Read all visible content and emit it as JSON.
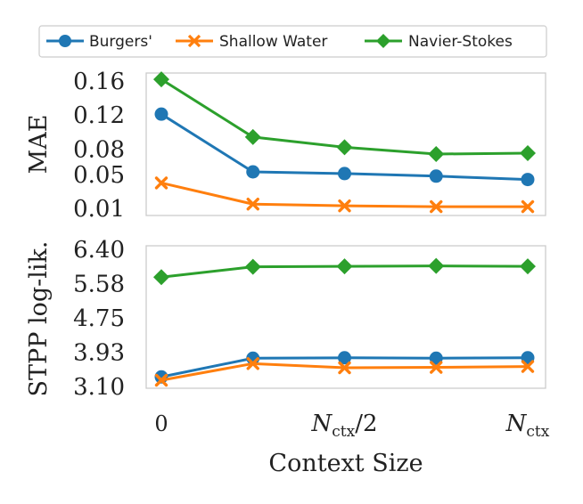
{
  "chart_data": {
    "type": "line",
    "x": [
      0,
      1,
      2,
      3,
      4
    ],
    "x_tick_labels": [
      {
        "x": 0,
        "label": "0"
      },
      {
        "x": 2,
        "label": "N_ctx/2",
        "base": "N",
        "sub": "ctx",
        "suffix": "/2"
      },
      {
        "x": 4,
        "label": "N_ctx",
        "base": "N",
        "sub": "ctx",
        "suffix": ""
      }
    ],
    "xlabel": "Context Size",
    "legend": {
      "placement": "top-center",
      "entries": [
        "Burgers'",
        "Shallow Water",
        "Navier-Stokes"
      ]
    },
    "colors": {
      "Burgers'": "#1f77b4",
      "Shallow Water": "#ff7f0e",
      "Navier-Stokes": "#2ca02c"
    },
    "markers": {
      "Burgers'": "circle",
      "Shallow Water": "x",
      "Navier-Stokes": "diamond"
    },
    "panels": [
      {
        "ylabel": "MAE",
        "ylim": [
          0.0,
          0.175
        ],
        "yticks": [
          0.01,
          0.05,
          0.08,
          0.12,
          0.16
        ],
        "ytick_labels": [
          "0.01",
          "0.05",
          "0.08",
          "0.12",
          "0.16"
        ],
        "series": [
          {
            "name": "Burgers'",
            "values": [
              0.121,
              0.053,
              0.051,
              0.048,
              0.044
            ]
          },
          {
            "name": "Shallow Water",
            "values": [
              0.04,
              0.015,
              0.013,
              0.012,
              0.012
            ]
          },
          {
            "name": "Navier-Stokes",
            "values": [
              0.162,
              0.094,
              0.082,
              0.074,
              0.075
            ]
          }
        ]
      },
      {
        "ylabel": "STPP log-lik.",
        "ylim": [
          3.03,
          6.4
        ],
        "yticks": [
          3.1,
          3.93,
          4.75,
          5.58,
          6.4
        ],
        "ytick_labels": [
          "3.10",
          "3.93",
          "4.75",
          "5.58",
          "6.40"
        ],
        "series": [
          {
            "name": "Burgers'",
            "values": [
              3.33,
              3.78,
              3.79,
              3.78,
              3.79
            ]
          },
          {
            "name": "Shallow Water",
            "values": [
              3.25,
              3.65,
              3.55,
              3.56,
              3.58
            ]
          },
          {
            "name": "Navier-Stokes",
            "values": [
              5.73,
              5.98,
              5.99,
              6.0,
              5.99
            ]
          }
        ]
      }
    ]
  }
}
